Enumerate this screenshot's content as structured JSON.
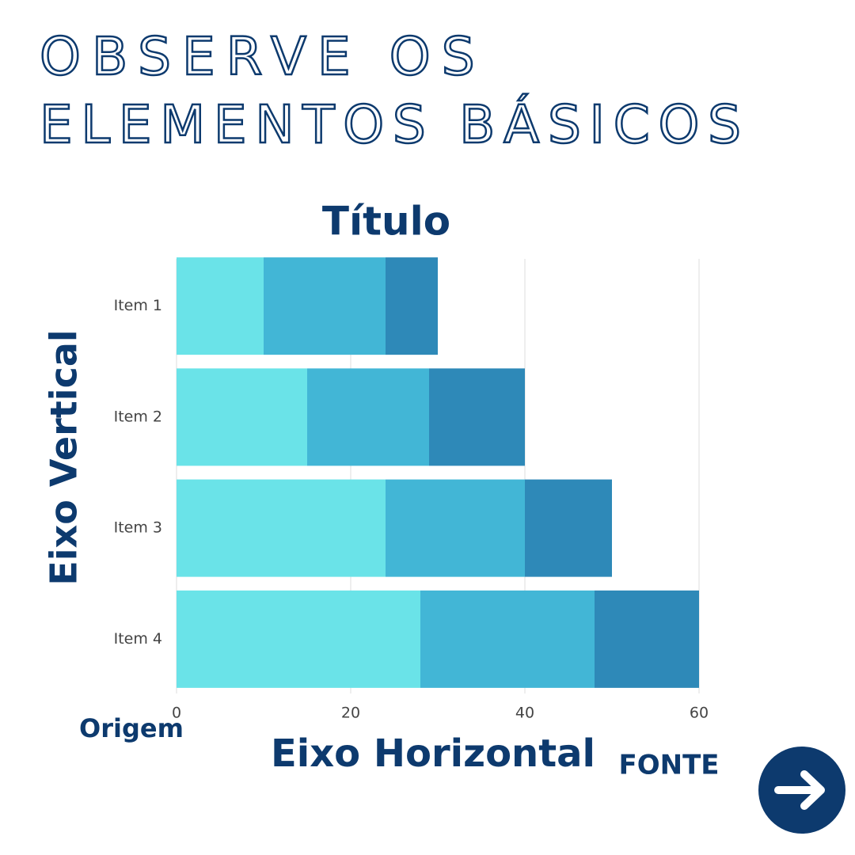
{
  "heading": {
    "lines": [
      "OBSERVE OS",
      "ELEMENTOS BÁSICOS"
    ]
  },
  "chart_data": {
    "type": "stacked-barh",
    "title": "Título",
    "xlabel": "Eixo Horizontal",
    "ylabel": "Eixo Vertical",
    "annotations": [
      "Origem",
      "FONTE"
    ],
    "categories": [
      "Item 1",
      "Item 2",
      "Item 3",
      "Item 4"
    ],
    "series": [
      {
        "color": "#6ae3e8",
        "values": [
          10,
          15,
          24,
          28
        ]
      },
      {
        "color": "#42b6d6",
        "values": [
          14,
          14,
          16,
          20
        ]
      },
      {
        "color": "#2e89b8",
        "values": [
          6,
          11,
          10,
          12
        ]
      }
    ],
    "xlim": [
      0,
      60
    ],
    "xticks": [
      0,
      20,
      40,
      60
    ],
    "grid": true
  }
}
